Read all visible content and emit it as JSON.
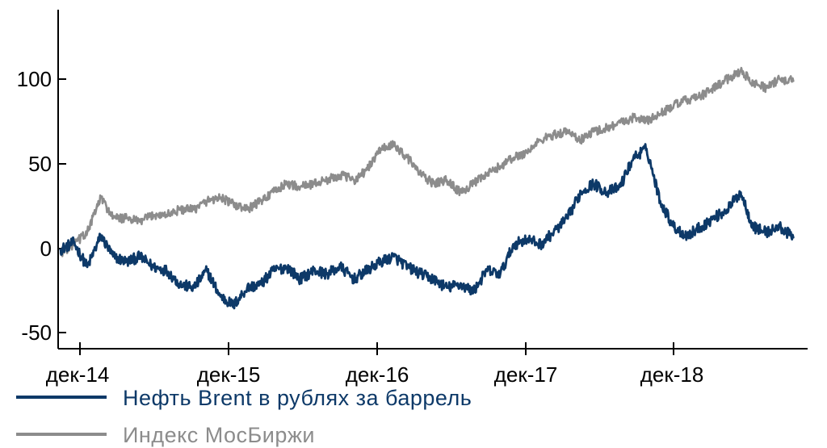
{
  "chart_data": {
    "type": "line",
    "title": "",
    "xlabel": "",
    "ylabel": "",
    "ylim": [
      -55,
      140
    ],
    "y_ticks": [
      100,
      50,
      0,
      -50
    ],
    "y_tick_labels": [
      "100",
      "50",
      "0",
      "-50"
    ],
    "x_range": [
      "2014-11-01",
      "2019-06-30"
    ],
    "x_ticks": [
      "2014-12-01",
      "2015-12-01",
      "2016-12-01",
      "2017-12-01",
      "2018-12-01"
    ],
    "x_tick_labels": [
      "дек-14",
      "дек-15",
      "дек-16",
      "дек-17",
      "дек-18"
    ],
    "grid": false,
    "legend_placement": "bottom-left",
    "series": [
      {
        "name": "Нефть Brent в рублях за баррель",
        "color": "#0d3968",
        "x": [
          "2014-11-01",
          "2014-12-01",
          "2015-01-01",
          "2015-02-01",
          "2015-03-01",
          "2015-04-01",
          "2015-05-01",
          "2015-06-01",
          "2015-07-01",
          "2015-08-01",
          "2015-09-01",
          "2015-10-01",
          "2015-11-01",
          "2015-12-01",
          "2016-01-01",
          "2016-02-01",
          "2016-03-01",
          "2016-04-01",
          "2016-05-01",
          "2016-06-01",
          "2016-07-01",
          "2016-08-01",
          "2016-09-01",
          "2016-10-01",
          "2016-11-01",
          "2016-12-01",
          "2017-01-01",
          "2017-02-01",
          "2017-03-01",
          "2017-04-01",
          "2017-05-01",
          "2017-06-01",
          "2017-07-01",
          "2017-08-01",
          "2017-09-01",
          "2017-10-01",
          "2017-11-01",
          "2017-12-01",
          "2018-01-01",
          "2018-02-01",
          "2018-03-01",
          "2018-04-01",
          "2018-05-01",
          "2018-06-01",
          "2018-07-01",
          "2018-08-01",
          "2018-09-01",
          "2018-10-01",
          "2018-11-01",
          "2018-12-01",
          "2019-01-01",
          "2019-02-01",
          "2019-03-01",
          "2019-04-01",
          "2019-05-01",
          "2019-06-01"
        ],
        "values": [
          2,
          6,
          -8,
          10,
          -2,
          -5,
          -2,
          -8,
          -10,
          -18,
          -20,
          -10,
          -25,
          -30,
          -20,
          -18,
          -10,
          -8,
          -15,
          -10,
          -12,
          -8,
          -15,
          -10,
          -5,
          -2,
          -8,
          -12,
          -15,
          -20,
          -18,
          -22,
          -10,
          -12,
          5,
          8,
          5,
          12,
          20,
          35,
          40,
          35,
          38,
          55,
          60,
          30,
          15,
          10,
          15,
          20,
          25,
          35,
          15,
          12,
          15,
          9
        ]
      },
      {
        "name": "Индекс МосБиржи",
        "color": "#8c8c8c",
        "x": [
          "2014-11-01",
          "2014-12-01",
          "2015-01-01",
          "2015-02-01",
          "2015-03-01",
          "2015-04-01",
          "2015-05-01",
          "2015-06-01",
          "2015-07-01",
          "2015-08-01",
          "2015-09-01",
          "2015-10-01",
          "2015-11-01",
          "2015-12-01",
          "2016-01-01",
          "2016-02-01",
          "2016-03-01",
          "2016-04-01",
          "2016-05-01",
          "2016-06-01",
          "2016-07-01",
          "2016-08-01",
          "2016-09-01",
          "2016-10-01",
          "2016-11-01",
          "2016-12-01",
          "2017-01-01",
          "2017-02-01",
          "2017-03-01",
          "2017-04-01",
          "2017-05-01",
          "2017-06-01",
          "2017-07-01",
          "2017-08-01",
          "2017-09-01",
          "2017-10-01",
          "2017-11-01",
          "2017-12-01",
          "2018-01-01",
          "2018-02-01",
          "2018-03-01",
          "2018-04-01",
          "2018-05-01",
          "2018-06-01",
          "2018-07-01",
          "2018-08-01",
          "2018-09-01",
          "2018-10-01",
          "2018-11-01",
          "2018-12-01",
          "2019-01-01",
          "2019-02-01",
          "2019-03-01",
          "2019-04-01",
          "2019-05-01",
          "2019-06-01"
        ],
        "values": [
          0,
          5,
          12,
          32,
          20,
          20,
          18,
          22,
          22,
          25,
          25,
          30,
          32,
          28,
          25,
          30,
          35,
          40,
          38,
          40,
          42,
          45,
          42,
          48,
          60,
          62,
          55,
          45,
          40,
          42,
          35,
          40,
          45,
          50,
          55,
          58,
          65,
          68,
          70,
          65,
          70,
          72,
          75,
          78,
          76,
          80,
          85,
          88,
          90,
          95,
          100,
          105,
          98,
          95,
          100,
          99
        ]
      }
    ]
  }
}
